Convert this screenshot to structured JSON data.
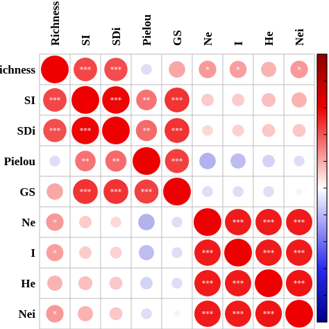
{
  "chart_data": {
    "type": "heatmap",
    "subtype": "correlation-circles",
    "variables": [
      "Richness",
      "SI",
      "SDi",
      "Pielou",
      "GS",
      "Ne",
      "I",
      "He",
      "Nei"
    ],
    "row_labels": [
      "Richness",
      "SI",
      "SDi",
      "Pielou",
      "GS",
      "Ne",
      "I",
      "He",
      "Nei"
    ],
    "col_labels": [
      "Richness",
      "SI",
      "SDi",
      "Pielou",
      "GS",
      "Ne",
      "I",
      "He",
      "Nei"
    ],
    "values": [
      [
        1.0,
        0.72,
        0.7,
        -0.15,
        0.35,
        0.4,
        0.38,
        0.3,
        0.4
      ],
      [
        0.72,
        1.0,
        0.98,
        0.55,
        0.8,
        0.2,
        0.2,
        0.25,
        0.3
      ],
      [
        0.7,
        0.98,
        1.0,
        0.58,
        0.8,
        0.15,
        0.18,
        0.22,
        0.22
      ],
      [
        -0.15,
        0.55,
        0.58,
        1.0,
        0.75,
        -0.35,
        -0.3,
        -0.2,
        -0.15
      ],
      [
        0.35,
        0.8,
        0.8,
        0.75,
        1.0,
        -0.15,
        -0.15,
        -0.15,
        -0.05
      ],
      [
        0.4,
        0.2,
        0.15,
        -0.35,
        -0.15,
        1.0,
        0.9,
        0.9,
        0.9
      ],
      [
        0.38,
        0.2,
        0.18,
        -0.3,
        -0.15,
        0.9,
        1.0,
        0.9,
        0.9
      ],
      [
        0.3,
        0.25,
        0.22,
        -0.2,
        -0.15,
        0.9,
        0.9,
        1.0,
        0.92
      ],
      [
        0.4,
        0.3,
        0.22,
        -0.15,
        -0.05,
        0.9,
        0.9,
        0.92,
        1.0
      ]
    ],
    "significance": [
      [
        "",
        "***",
        "***",
        "",
        "",
        "*",
        "*",
        "",
        "*"
      ],
      [
        "***",
        "",
        "***",
        "**",
        "***",
        "",
        "",
        "",
        ""
      ],
      [
        "***",
        "***",
        "",
        "**",
        "***",
        "",
        "",
        "",
        ""
      ],
      [
        "",
        "**",
        "**",
        "",
        "***",
        "",
        "",
        "",
        ""
      ],
      [
        "",
        "***",
        "***",
        "***",
        "",
        "",
        "",
        "",
        ""
      ],
      [
        "*",
        "",
        "",
        "",
        "",
        "",
        "***",
        "***",
        "***"
      ],
      [
        "*",
        "",
        "",
        "",
        "",
        "***",
        "",
        "***",
        "***"
      ],
      [
        "",
        "",
        "",
        "",
        "",
        "***",
        "***",
        "",
        "***"
      ],
      [
        "*",
        "",
        "",
        "",
        "",
        "***",
        "***",
        "***",
        ""
      ]
    ],
    "value_range": [
      -1,
      1
    ],
    "colors": {
      "positive": "#ee0000",
      "negative": "#2222cc",
      "neutral": "#ffffff",
      "grid": "#bbbbbb",
      "colorbar_border": "#000000"
    },
    "legend": "right colorbar",
    "grid": true
  }
}
